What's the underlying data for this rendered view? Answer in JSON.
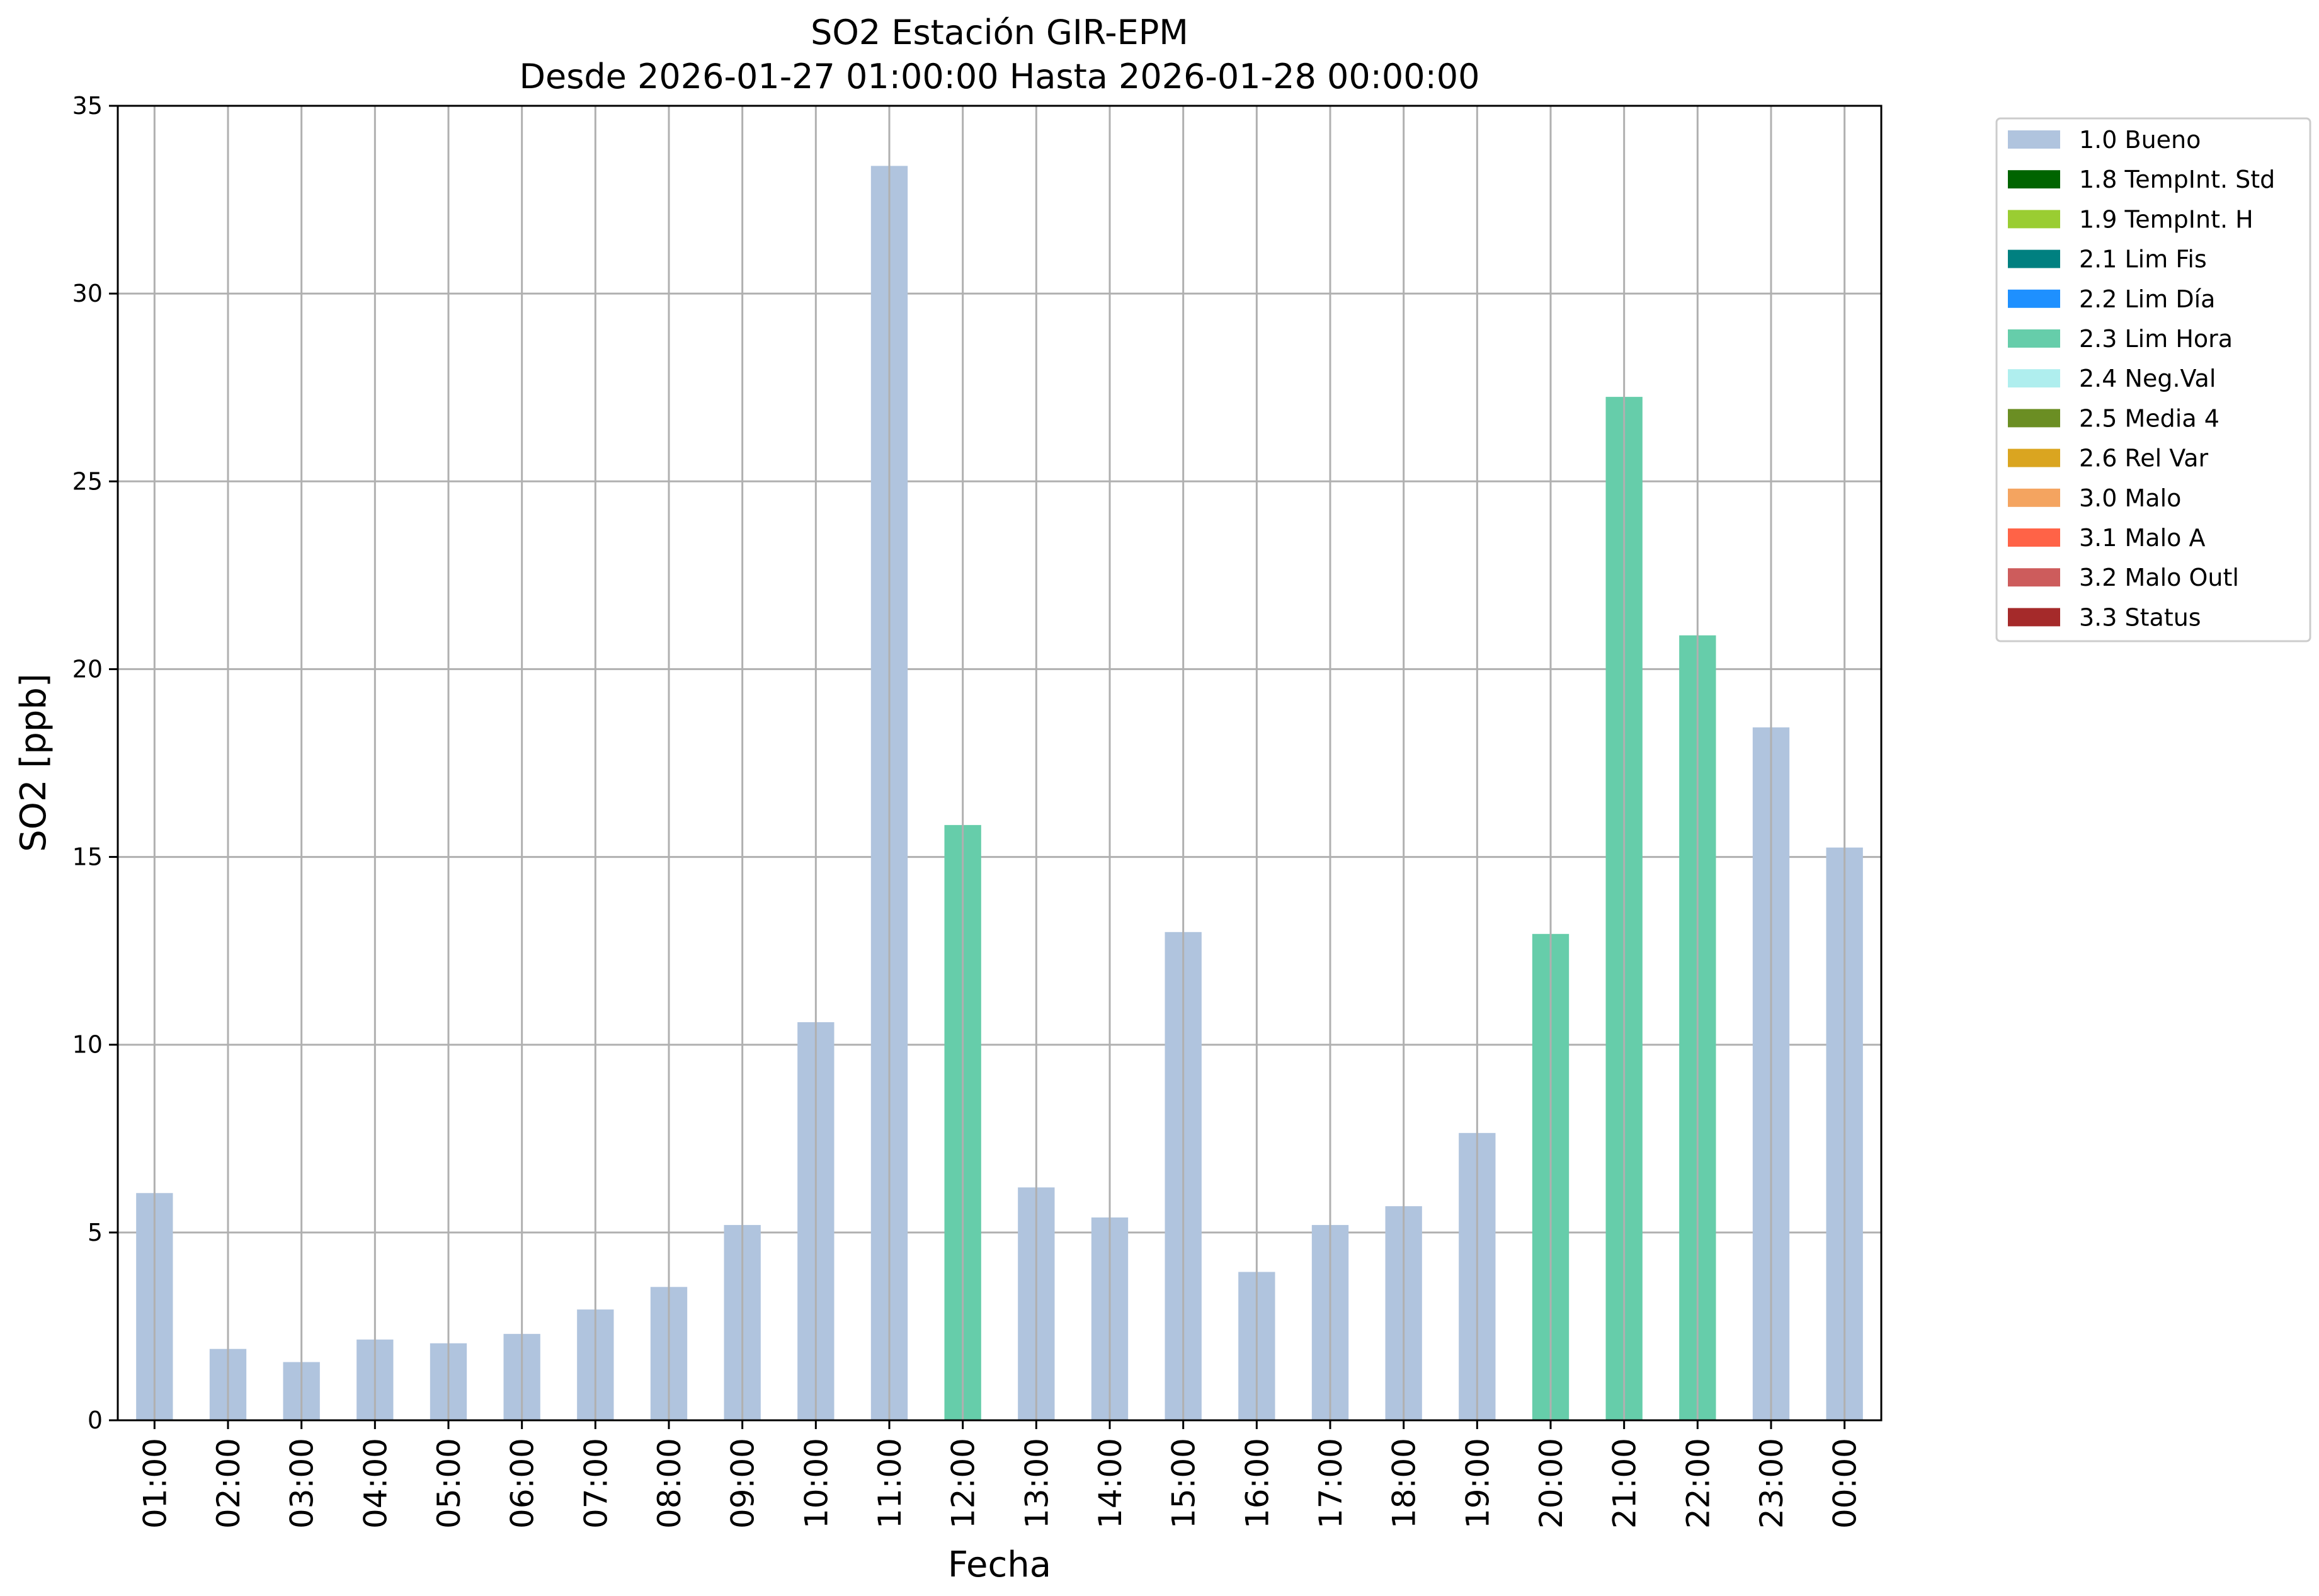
{
  "chart_data": {
    "type": "bar",
    "title": "SO2 Estación GIR-EPM",
    "subtitle": "Desde 2026-01-27 01:00:00 Hasta 2026-01-28 00:00:00",
    "xlabel": "Fecha",
    "ylabel": "SO2 [ppb]",
    "ylim": [
      0,
      35
    ],
    "yticks": [
      0,
      5,
      10,
      15,
      20,
      25,
      30,
      35
    ],
    "grid": true,
    "legend_position": "outside-top-right",
    "categories": [
      "01:00",
      "02:00",
      "03:00",
      "04:00",
      "05:00",
      "06:00",
      "07:00",
      "08:00",
      "09:00",
      "10:00",
      "11:00",
      "12:00",
      "13:00",
      "14:00",
      "15:00",
      "16:00",
      "17:00",
      "18:00",
      "19:00",
      "20:00",
      "21:00",
      "22:00",
      "23:00",
      "00:00"
    ],
    "values": [
      6.05,
      1.9,
      1.55,
      2.15,
      2.05,
      2.3,
      2.95,
      3.55,
      5.2,
      10.6,
      33.4,
      15.85,
      6.2,
      5.4,
      13.0,
      3.95,
      5.2,
      5.7,
      7.65,
      12.95,
      27.25,
      20.9,
      18.45,
      15.25
    ],
    "flags": [
      "1.0 Bueno",
      "1.0 Bueno",
      "1.0 Bueno",
      "1.0 Bueno",
      "1.0 Bueno",
      "1.0 Bueno",
      "1.0 Bueno",
      "1.0 Bueno",
      "1.0 Bueno",
      "1.0 Bueno",
      "1.0 Bueno",
      "2.3 Lim Hora",
      "1.0 Bueno",
      "1.0 Bueno",
      "1.0 Bueno",
      "1.0 Bueno",
      "1.0 Bueno",
      "1.0 Bueno",
      "1.0 Bueno",
      "2.3 Lim Hora",
      "2.3 Lim Hora",
      "2.3 Lim Hora",
      "1.0 Bueno",
      "1.0 Bueno"
    ],
    "legend": [
      {
        "label": "1.0 Bueno",
        "color": "#b0c4de"
      },
      {
        "label": "1.8 TempInt. Std",
        "color": "#006400"
      },
      {
        "label": "1.9 TempInt. H",
        "color": "#9acd32"
      },
      {
        "label": "2.1 Lim Fis",
        "color": "#008080"
      },
      {
        "label": "2.2 Lim Día",
        "color": "#1e90ff"
      },
      {
        "label": "2.3 Lim Hora",
        "color": "#66cdaa"
      },
      {
        "label": "2.4 Neg.Val",
        "color": "#afeeee"
      },
      {
        "label": "2.5 Media 4",
        "color": "#6b8e23"
      },
      {
        "label": "2.6 Rel Var",
        "color": "#daa520"
      },
      {
        "label": "3.0 Malo",
        "color": "#f4a460"
      },
      {
        "label": "3.1 Malo A",
        "color": "#ff6347"
      },
      {
        "label": "3.2 Malo Outl",
        "color": "#cd5c5c"
      },
      {
        "label": "3.3 Status",
        "color": "#a52a2a"
      }
    ]
  }
}
